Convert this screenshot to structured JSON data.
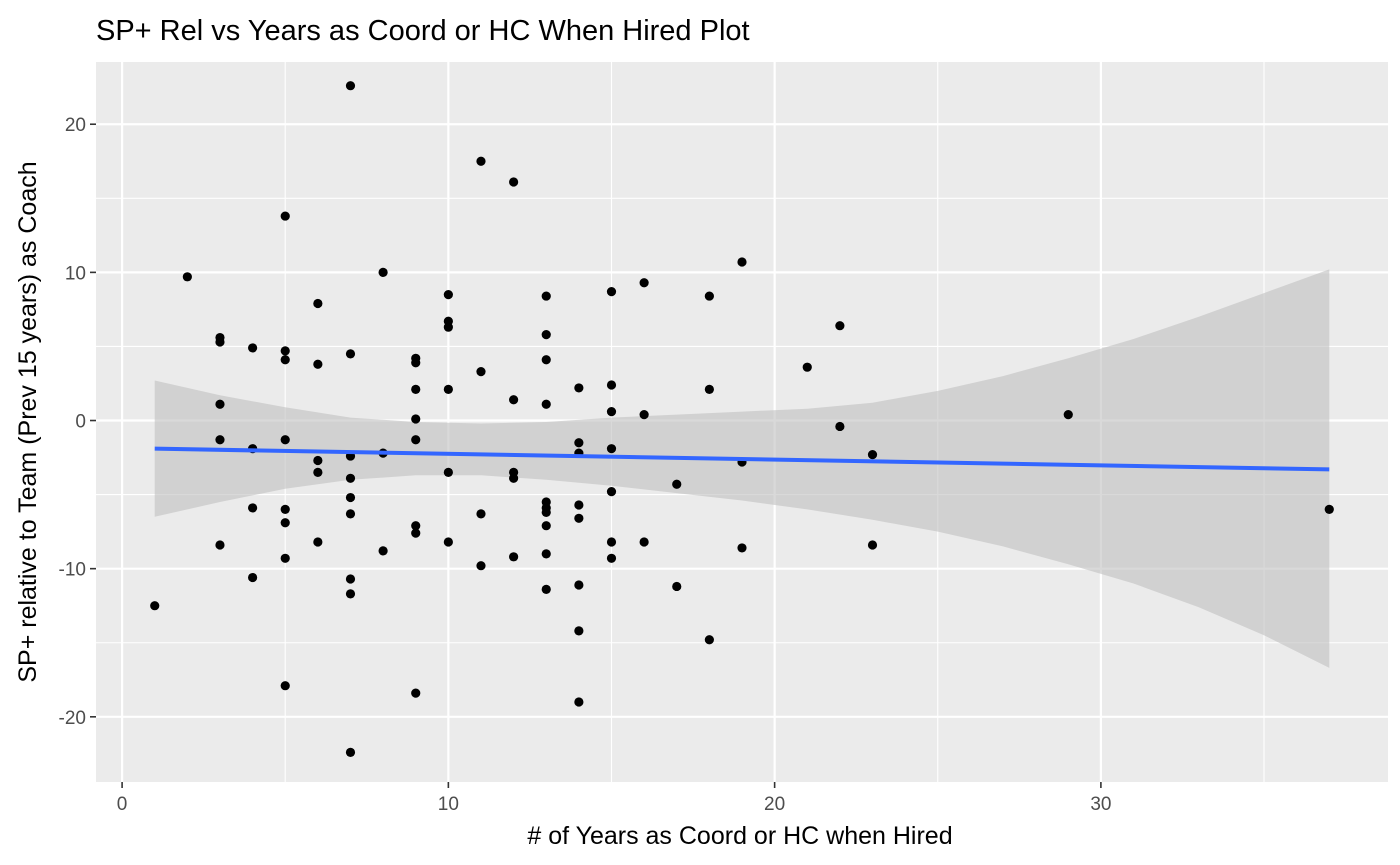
{
  "chart_data": {
    "type": "scatter",
    "title": "SP+ Rel vs Years as Coord or HC When Hired Plot",
    "xlabel": "# of Years as Coord or HC when Hired",
    "ylabel": "SP+ relative to Team (Prev 15 years) as Coach",
    "xlim": [
      -0.8,
      38.8
    ],
    "ylim": [
      -24.4,
      24.2
    ],
    "x_ticks": [
      0,
      10,
      20,
      30
    ],
    "y_ticks": [
      -20,
      -10,
      0,
      10,
      20
    ],
    "x_tick_labels": [
      "0",
      "10",
      "20",
      "30"
    ],
    "y_tick_labels": [
      "-20",
      "-10",
      "0",
      "10",
      "20"
    ],
    "grid": true,
    "colors": {
      "panel": "#EBEBEB",
      "grid": "#FFFFFF",
      "points": "#000000",
      "smooth_line": "#3366FF",
      "ribbon": "#BFBFBF"
    },
    "points": [
      {
        "x": 1,
        "y": -12.5
      },
      {
        "x": 2,
        "y": 9.7
      },
      {
        "x": 3,
        "y": 5.6
      },
      {
        "x": 3,
        "y": 5.3
      },
      {
        "x": 3,
        "y": 1.1
      },
      {
        "x": 3,
        "y": -1.3
      },
      {
        "x": 3,
        "y": -8.4
      },
      {
        "x": 4,
        "y": 4.9
      },
      {
        "x": 4,
        "y": -1.9
      },
      {
        "x": 4,
        "y": -5.9
      },
      {
        "x": 4,
        "y": -10.6
      },
      {
        "x": 5,
        "y": 13.8
      },
      {
        "x": 5,
        "y": 4.7
      },
      {
        "x": 5,
        "y": 4.1
      },
      {
        "x": 5,
        "y": -1.3
      },
      {
        "x": 5,
        "y": -6.0
      },
      {
        "x": 5,
        "y": -6.9
      },
      {
        "x": 5,
        "y": -9.3
      },
      {
        "x": 5,
        "y": -17.9
      },
      {
        "x": 6,
        "y": 7.9
      },
      {
        "x": 6,
        "y": 3.8
      },
      {
        "x": 6,
        "y": -2.7
      },
      {
        "x": 6,
        "y": -3.5
      },
      {
        "x": 6,
        "y": -8.2
      },
      {
        "x": 7,
        "y": 22.6
      },
      {
        "x": 7,
        "y": 4.5
      },
      {
        "x": 7,
        "y": -2.4
      },
      {
        "x": 7,
        "y": -3.9
      },
      {
        "x": 7,
        "y": -5.2
      },
      {
        "x": 7,
        "y": -6.3
      },
      {
        "x": 7,
        "y": -10.7
      },
      {
        "x": 7,
        "y": -11.7
      },
      {
        "x": 7,
        "y": -22.4
      },
      {
        "x": 8,
        "y": 10.0
      },
      {
        "x": 8,
        "y": -2.2
      },
      {
        "x": 8,
        "y": -8.8
      },
      {
        "x": 9,
        "y": 4.2
      },
      {
        "x": 9,
        "y": 3.9
      },
      {
        "x": 9,
        "y": 2.1
      },
      {
        "x": 9,
        "y": 0.1
      },
      {
        "x": 9,
        "y": -1.3
      },
      {
        "x": 9,
        "y": -7.1
      },
      {
        "x": 9,
        "y": -7.6
      },
      {
        "x": 9,
        "y": -18.4
      },
      {
        "x": 10,
        "y": 8.5
      },
      {
        "x": 10,
        "y": 6.7
      },
      {
        "x": 10,
        "y": 6.3
      },
      {
        "x": 10,
        "y": 2.1
      },
      {
        "x": 10,
        "y": -3.5
      },
      {
        "x": 10,
        "y": -8.2
      },
      {
        "x": 11,
        "y": 17.5
      },
      {
        "x": 11,
        "y": 3.3
      },
      {
        "x": 11,
        "y": -6.3
      },
      {
        "x": 11,
        "y": -9.8
      },
      {
        "x": 12,
        "y": 16.1
      },
      {
        "x": 12,
        "y": 1.4
      },
      {
        "x": 12,
        "y": -3.5
      },
      {
        "x": 12,
        "y": -3.9
      },
      {
        "x": 12,
        "y": -9.2
      },
      {
        "x": 13,
        "y": 8.4
      },
      {
        "x": 13,
        "y": 5.8
      },
      {
        "x": 13,
        "y": 4.1
      },
      {
        "x": 13,
        "y": 1.1
      },
      {
        "x": 13,
        "y": -5.5
      },
      {
        "x": 13,
        "y": -5.9
      },
      {
        "x": 13,
        "y": -6.2
      },
      {
        "x": 13,
        "y": -7.1
      },
      {
        "x": 13,
        "y": -9.0
      },
      {
        "x": 13,
        "y": -11.4
      },
      {
        "x": 14,
        "y": 2.2
      },
      {
        "x": 14,
        "y": -1.5
      },
      {
        "x": 14,
        "y": -2.2
      },
      {
        "x": 14,
        "y": -5.7
      },
      {
        "x": 14,
        "y": -6.6
      },
      {
        "x": 14,
        "y": -11.1
      },
      {
        "x": 14,
        "y": -14.2
      },
      {
        "x": 14,
        "y": -19.0
      },
      {
        "x": 15,
        "y": 8.7
      },
      {
        "x": 15,
        "y": 2.4
      },
      {
        "x": 15,
        "y": 0.6
      },
      {
        "x": 15,
        "y": -1.9
      },
      {
        "x": 15,
        "y": -4.8
      },
      {
        "x": 15,
        "y": -8.2
      },
      {
        "x": 15,
        "y": -9.3
      },
      {
        "x": 16,
        "y": 9.3
      },
      {
        "x": 16,
        "y": 0.4
      },
      {
        "x": 16,
        "y": -8.2
      },
      {
        "x": 17,
        "y": -4.3
      },
      {
        "x": 17,
        "y": -11.2
      },
      {
        "x": 18,
        "y": 8.4
      },
      {
        "x": 18,
        "y": 2.1
      },
      {
        "x": 18,
        "y": -14.8
      },
      {
        "x": 19,
        "y": 10.7
      },
      {
        "x": 19,
        "y": -2.8
      },
      {
        "x": 19,
        "y": -8.6
      },
      {
        "x": 21,
        "y": 3.6
      },
      {
        "x": 22,
        "y": 6.4
      },
      {
        "x": 22,
        "y": -0.4
      },
      {
        "x": 23,
        "y": -2.3
      },
      {
        "x": 23,
        "y": -8.4
      },
      {
        "x": 29,
        "y": 0.4
      },
      {
        "x": 37,
        "y": -6.0
      }
    ],
    "smooth": {
      "method": "lm",
      "x": [
        1,
        37
      ],
      "y": [
        -1.9,
        -3.3
      ]
    },
    "confidence_band": {
      "x": [
        1,
        3,
        5,
        7,
        9,
        11,
        13,
        15,
        17,
        19,
        21,
        23,
        25,
        27,
        29,
        31,
        33,
        35,
        37
      ],
      "lower": [
        -6.5,
        -5.5,
        -4.6,
        -4.0,
        -3.7,
        -3.7,
        -4.0,
        -4.4,
        -4.9,
        -5.4,
        -6.0,
        -6.7,
        -7.5,
        -8.5,
        -9.7,
        -11.0,
        -12.6,
        -14.5,
        -16.7
      ],
      "upper": [
        2.7,
        1.7,
        0.9,
        0.2,
        -0.1,
        -0.2,
        -0.1,
        0.2,
        0.4,
        0.6,
        0.8,
        1.2,
        2.0,
        3.0,
        4.2,
        5.5,
        7.0,
        8.6,
        10.2
      ]
    }
  }
}
